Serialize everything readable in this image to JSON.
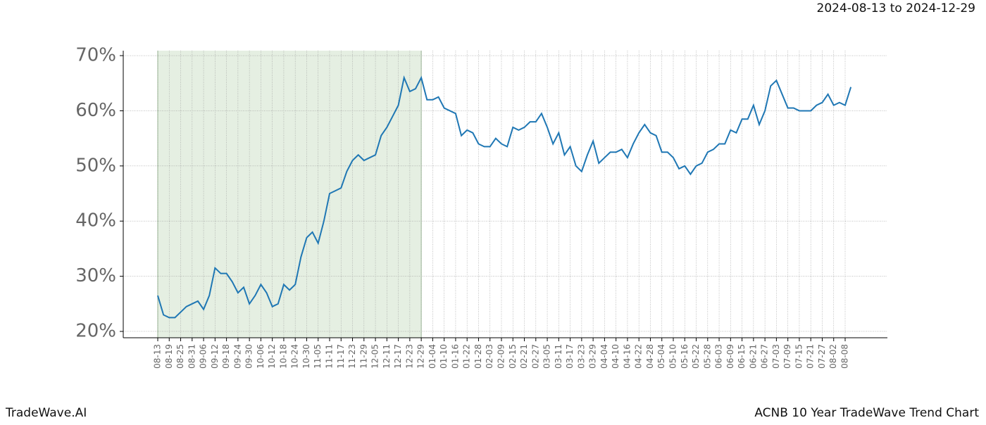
{
  "chart_data": {
    "type": "line",
    "header": "2024-08-13 to 2024-12-29",
    "footer_left": "TradeWave.AI",
    "footer_right": "ACNB 10 Year TradeWave Trend Chart",
    "shaded_range": [
      "08-13",
      "12-29"
    ],
    "grid": true,
    "categories": [
      "08-13",
      null,
      "08-19",
      null,
      "08-25",
      null,
      "08-31",
      null,
      "09-06",
      null,
      "09-12",
      null,
      "09-18",
      null,
      "09-24",
      null,
      "09-30",
      null,
      "10-06",
      null,
      "10-12",
      null,
      "10-18",
      null,
      "10-24",
      null,
      "10-30",
      null,
      "11-05",
      null,
      "11-11",
      null,
      "11-17",
      null,
      "11-23",
      null,
      "11-29",
      null,
      "12-05",
      null,
      "12-11",
      null,
      "12-17",
      null,
      "12-23",
      null,
      "12-29",
      null,
      "01-04",
      null,
      "01-10",
      null,
      "01-16",
      null,
      "01-22",
      null,
      "01-28",
      null,
      "02-03",
      null,
      "02-09",
      null,
      "02-15",
      null,
      "02-21",
      null,
      "02-27",
      null,
      "03-05",
      null,
      "03-11",
      null,
      "03-17",
      null,
      "03-23",
      null,
      "03-29",
      null,
      "04-04",
      null,
      "04-10",
      null,
      "04-16",
      null,
      "04-22",
      null,
      "04-28",
      null,
      "05-04",
      null,
      "05-10",
      null,
      "05-16",
      null,
      "05-22",
      null,
      "05-28",
      null,
      "06-03",
      null,
      "06-09",
      null,
      "06-15",
      null,
      "06-21",
      null,
      "06-27",
      null,
      "07-03",
      null,
      "07-09",
      null,
      "07-15",
      null,
      "07-21",
      null,
      "07-27",
      null,
      "08-02",
      null,
      "08-08",
      null
    ],
    "series": [
      {
        "color": "#1f77b4",
        "values": [
          26.5,
          23,
          22.5,
          22.5,
          23.5,
          24.5,
          25,
          25.5,
          24,
          26.5,
          31.5,
          30.5,
          30.5,
          29,
          27,
          28,
          25,
          26.5,
          28.5,
          27,
          24.5,
          25,
          28.5,
          27.5,
          28.5,
          33.5,
          37,
          38,
          36,
          40,
          45,
          45.5,
          46,
          49,
          51,
          52,
          51,
          51.5,
          52,
          55.5,
          57,
          59,
          61,
          66,
          63.5,
          64,
          66,
          62,
          62,
          62.5,
          60.5,
          60,
          59.5,
          55.5,
          56.5,
          56,
          54,
          53.5,
          53.5,
          55,
          54,
          53.5,
          57,
          56.5,
          57,
          58,
          58,
          59.5,
          57,
          54,
          56,
          52,
          53.5,
          50,
          49,
          52,
          54.5,
          50.5,
          51.5,
          52.5,
          52.5,
          53,
          51.5,
          54,
          56,
          57.5,
          56,
          55.5,
          52.5,
          52.5,
          51.5,
          49.5,
          50,
          48.5,
          50,
          50.5,
          52.5,
          53,
          54,
          54,
          56.5,
          56,
          58.5,
          58.5,
          61,
          57.5,
          60,
          64.5,
          65.5,
          63,
          60.5,
          60.5,
          60,
          60,
          60,
          61,
          61.5,
          63,
          61,
          61.5,
          61,
          64.3
        ]
      }
    ],
    "ylim": [
      18.85,
      70.9
    ],
    "yticks": [
      {
        "value": 20,
        "label": "20%"
      },
      {
        "value": 30,
        "label": "30%"
      },
      {
        "value": 40,
        "label": "40%"
      },
      {
        "value": 50,
        "label": "50%"
      },
      {
        "value": 60,
        "label": "60%"
      },
      {
        "value": 70,
        "label": "70%"
      }
    ]
  }
}
